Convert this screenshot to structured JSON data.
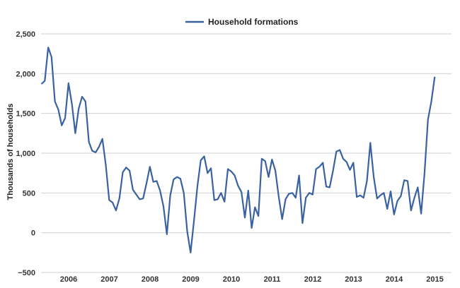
{
  "chart_data": {
    "type": "line",
    "ylabel": "Thousands of households",
    "ylim": [
      -500,
      2500
    ],
    "yticks": [
      -500,
      0,
      500,
      1000,
      1500,
      2000,
      2500
    ],
    "ytick_labels": [
      "−500",
      "0",
      "500",
      "1,000",
      "1,500",
      "2,000",
      "2,500"
    ],
    "xticks": [
      2006,
      2007,
      2008,
      2009,
      2010,
      2011,
      2012,
      2013,
      2014,
      2015
    ],
    "xtick_labels": [
      "2006",
      "2007",
      "2008",
      "2009",
      "2010",
      "2011",
      "2012",
      "2013",
      "2014",
      "2015"
    ],
    "grid": "horizontal",
    "legend": "top-center",
    "color": "#3a62a0",
    "series": [
      {
        "name": "Household formations",
        "values": [
          1870,
          1910,
          2330,
          2210,
          1650,
          1550,
          1350,
          1440,
          1880,
          1620,
          1250,
          1560,
          1710,
          1650,
          1140,
          1030,
          1010,
          1080,
          1180,
          850,
          410,
          380,
          280,
          430,
          760,
          820,
          780,
          540,
          480,
          420,
          430,
          620,
          830,
          640,
          650,
          530,
          330,
          -20,
          470,
          670,
          700,
          680,
          500,
          20,
          -250,
          150,
          580,
          910,
          960,
          750,
          810,
          410,
          420,
          500,
          390,
          800,
          770,
          720,
          590,
          510,
          190,
          530,
          60,
          320,
          210,
          930,
          900,
          700,
          920,
          780,
          450,
          170,
          420,
          490,
          500,
          440,
          720,
          120,
          440,
          500,
          480,
          800,
          830,
          880,
          580,
          570,
          780,
          1020,
          1040,
          930,
          890,
          790,
          880,
          450,
          470,
          440,
          650,
          1130,
          700,
          430,
          470,
          500,
          300,
          520,
          230,
          400,
          460,
          660,
          650,
          280,
          440,
          570,
          240,
          750,
          1420,
          1650,
          1960
        ]
      }
    ]
  }
}
